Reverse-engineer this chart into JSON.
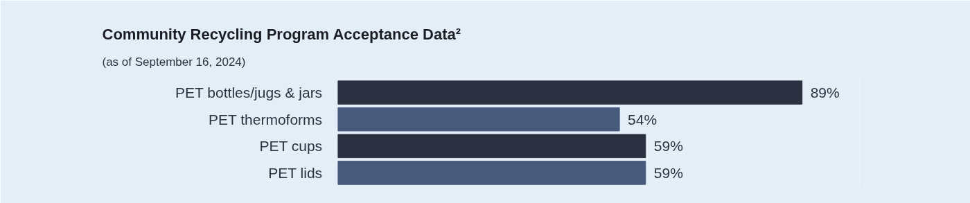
{
  "chart_data": {
    "type": "bar",
    "orientation": "horizontal",
    "title": "Community Recycling Program Acceptance Data²",
    "subtitle": "(as of September 16, 2024)",
    "categories": [
      "PET bottles/jugs & jars",
      "PET thermoforms",
      "PET cups",
      "PET lids"
    ],
    "values": [
      89,
      54,
      59,
      59
    ],
    "colors": [
      "#2b3141",
      "#475a7b",
      "#2b3141",
      "#475a7b"
    ],
    "value_labels": [
      "89%",
      "54%",
      "59%",
      "59%"
    ],
    "grid": false
  }
}
